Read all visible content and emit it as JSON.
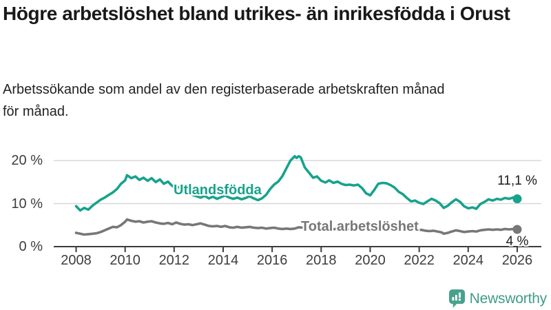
{
  "header": {
    "title": "Högre arbetslöshet bland utrikes- än inrikesfödda i Orust",
    "subtitle": "Arbetssökande som andel av den registerbaserade arbetskraften månad för månad."
  },
  "footer": {
    "brand": "Newsworthy",
    "logo_icon": "speech-bubble-bar-chart-icon"
  },
  "colors": {
    "foreign_born_line": "#17a28c",
    "total_line": "#777777",
    "gridline": "#d8d8d8",
    "axis": "#3a3a3a",
    "tick_text": "#3d3d3d",
    "logo": "#47a18e",
    "title_text": "#191919"
  },
  "chart_data": {
    "type": "line",
    "title": "Högre arbetslöshet bland utrikes- än inrikesfödda i Orust",
    "subtitle": "Arbetssökande som andel av den registerbaserade arbetskraften månad för månad.",
    "unit": "%",
    "xlabel": "",
    "ylabel": "",
    "ylim": [
      0,
      22
    ],
    "xlim": [
      2007.9,
      2027.0
    ],
    "grid": "horizontal",
    "legend": "inline-labels",
    "x_ticks": [
      2008,
      2010,
      2012,
      2014,
      2016,
      2018,
      2020,
      2022,
      2024,
      2026
    ],
    "y_ticks": [
      {
        "value": 20,
        "label": "20 %"
      },
      {
        "value": 10,
        "label": "10 %"
      },
      {
        "value": 0,
        "label": "0 %"
      }
    ],
    "series": [
      {
        "name": "Utlandsfödda",
        "color": "#17a28c",
        "end_label": "11,1 %",
        "end_value": 11.1,
        "points": [
          [
            2008.0,
            9.4
          ],
          [
            2008.17,
            8.4
          ],
          [
            2008.33,
            9.0
          ],
          [
            2008.5,
            8.6
          ],
          [
            2008.67,
            9.5
          ],
          [
            2008.83,
            10.2
          ],
          [
            2009.0,
            10.9
          ],
          [
            2009.17,
            11.4
          ],
          [
            2009.33,
            12.0
          ],
          [
            2009.5,
            12.6
          ],
          [
            2009.67,
            13.4
          ],
          [
            2009.83,
            14.6
          ],
          [
            2010.0,
            15.4
          ],
          [
            2010.08,
            16.6
          ],
          [
            2010.25,
            15.9
          ],
          [
            2010.42,
            16.3
          ],
          [
            2010.58,
            15.5
          ],
          [
            2010.75,
            16.0
          ],
          [
            2010.92,
            15.3
          ],
          [
            2011.08,
            15.9
          ],
          [
            2011.25,
            15.0
          ],
          [
            2011.42,
            15.6
          ],
          [
            2011.58,
            14.6
          ],
          [
            2011.75,
            15.1
          ],
          [
            2011.92,
            14.1
          ],
          [
            2012.08,
            13.6
          ],
          [
            2012.25,
            13.9
          ],
          [
            2012.42,
            12.9
          ],
          [
            2012.58,
            12.4
          ],
          [
            2012.75,
            12.0
          ],
          [
            2012.92,
            11.7
          ],
          [
            2013.08,
            11.4
          ],
          [
            2013.25,
            11.8
          ],
          [
            2013.42,
            11.2
          ],
          [
            2013.58,
            11.6
          ],
          [
            2013.75,
            11.1
          ],
          [
            2013.92,
            11.5
          ],
          [
            2014.08,
            11.9
          ],
          [
            2014.25,
            11.4
          ],
          [
            2014.42,
            11.1
          ],
          [
            2014.58,
            11.4
          ],
          [
            2014.75,
            11.0
          ],
          [
            2014.92,
            11.3
          ],
          [
            2015.08,
            11.7
          ],
          [
            2015.25,
            11.2
          ],
          [
            2015.42,
            10.8
          ],
          [
            2015.58,
            11.2
          ],
          [
            2015.75,
            12.0
          ],
          [
            2015.92,
            13.4
          ],
          [
            2016.08,
            14.4
          ],
          [
            2016.25,
            15.1
          ],
          [
            2016.42,
            16.4
          ],
          [
            2016.58,
            18.2
          ],
          [
            2016.75,
            20.0
          ],
          [
            2016.92,
            21.0
          ],
          [
            2017.0,
            20.6
          ],
          [
            2017.08,
            21.0
          ],
          [
            2017.17,
            20.7
          ],
          [
            2017.33,
            18.4
          ],
          [
            2017.5,
            17.2
          ],
          [
            2017.67,
            16.0
          ],
          [
            2017.83,
            16.3
          ],
          [
            2018.0,
            15.3
          ],
          [
            2018.17,
            14.9
          ],
          [
            2018.33,
            15.4
          ],
          [
            2018.5,
            14.8
          ],
          [
            2018.67,
            15.1
          ],
          [
            2018.83,
            14.6
          ],
          [
            2019.0,
            14.3
          ],
          [
            2019.17,
            14.4
          ],
          [
            2019.33,
            14.2
          ],
          [
            2019.5,
            14.4
          ],
          [
            2019.67,
            13.6
          ],
          [
            2019.83,
            12.4
          ],
          [
            2020.0,
            11.9
          ],
          [
            2020.17,
            13.2
          ],
          [
            2020.33,
            14.6
          ],
          [
            2020.5,
            14.8
          ],
          [
            2020.67,
            14.7
          ],
          [
            2020.83,
            14.3
          ],
          [
            2021.0,
            13.7
          ],
          [
            2021.17,
            12.7
          ],
          [
            2021.33,
            12.2
          ],
          [
            2021.5,
            11.3
          ],
          [
            2021.67,
            10.5
          ],
          [
            2021.83,
            10.7
          ],
          [
            2022.0,
            10.2
          ],
          [
            2022.17,
            9.9
          ],
          [
            2022.33,
            10.5
          ],
          [
            2022.5,
            11.1
          ],
          [
            2022.67,
            10.7
          ],
          [
            2022.83,
            10.1
          ],
          [
            2023.0,
            9.0
          ],
          [
            2023.17,
            9.5
          ],
          [
            2023.33,
            10.3
          ],
          [
            2023.5,
            11.0
          ],
          [
            2023.67,
            10.4
          ],
          [
            2023.83,
            9.4
          ],
          [
            2024.0,
            8.9
          ],
          [
            2024.17,
            9.1
          ],
          [
            2024.33,
            8.8
          ],
          [
            2024.5,
            9.9
          ],
          [
            2024.67,
            10.4
          ],
          [
            2024.83,
            11.0
          ],
          [
            2025.0,
            10.7
          ],
          [
            2025.17,
            11.1
          ],
          [
            2025.33,
            10.9
          ],
          [
            2025.5,
            11.3
          ],
          [
            2025.67,
            11.1
          ],
          [
            2025.83,
            11.4
          ],
          [
            2026.0,
            11.1
          ]
        ]
      },
      {
        "name": "Total arbetslöshet",
        "color": "#777777",
        "end_label": "4 %",
        "end_value": 4.0,
        "points": [
          [
            2008.0,
            3.2
          ],
          [
            2008.17,
            3.0
          ],
          [
            2008.33,
            2.8
          ],
          [
            2008.5,
            2.9
          ],
          [
            2008.67,
            3.0
          ],
          [
            2008.83,
            3.1
          ],
          [
            2009.0,
            3.4
          ],
          [
            2009.17,
            3.8
          ],
          [
            2009.33,
            4.2
          ],
          [
            2009.5,
            4.6
          ],
          [
            2009.67,
            4.5
          ],
          [
            2009.83,
            5.0
          ],
          [
            2010.0,
            5.8
          ],
          [
            2010.08,
            6.3
          ],
          [
            2010.25,
            6.0
          ],
          [
            2010.42,
            5.8
          ],
          [
            2010.58,
            5.9
          ],
          [
            2010.75,
            5.6
          ],
          [
            2010.92,
            5.8
          ],
          [
            2011.08,
            5.9
          ],
          [
            2011.25,
            5.6
          ],
          [
            2011.42,
            5.4
          ],
          [
            2011.58,
            5.3
          ],
          [
            2011.75,
            5.5
          ],
          [
            2011.92,
            5.2
          ],
          [
            2012.08,
            5.6
          ],
          [
            2012.25,
            5.3
          ],
          [
            2012.42,
            5.1
          ],
          [
            2012.58,
            5.2
          ],
          [
            2012.75,
            5.0
          ],
          [
            2012.92,
            5.2
          ],
          [
            2013.08,
            5.4
          ],
          [
            2013.25,
            5.1
          ],
          [
            2013.42,
            4.8
          ],
          [
            2013.58,
            4.7
          ],
          [
            2013.75,
            4.8
          ],
          [
            2013.92,
            4.6
          ],
          [
            2014.08,
            4.8
          ],
          [
            2014.25,
            4.5
          ],
          [
            2014.42,
            4.4
          ],
          [
            2014.58,
            4.6
          ],
          [
            2014.75,
            4.4
          ],
          [
            2014.92,
            4.5
          ],
          [
            2015.08,
            4.6
          ],
          [
            2015.25,
            4.4
          ],
          [
            2015.42,
            4.3
          ],
          [
            2015.58,
            4.4
          ],
          [
            2015.75,
            4.2
          ],
          [
            2015.92,
            4.3
          ],
          [
            2016.08,
            4.4
          ],
          [
            2016.25,
            4.2
          ],
          [
            2016.42,
            4.1
          ],
          [
            2016.58,
            4.2
          ],
          [
            2016.75,
            4.1
          ],
          [
            2016.92,
            4.2
          ],
          [
            2017.08,
            4.5
          ],
          [
            2017.25,
            4.4
          ],
          [
            2017.42,
            4.2
          ],
          [
            2017.58,
            4.1
          ],
          [
            2017.75,
            4.2
          ],
          [
            2017.92,
            4.1
          ],
          [
            2018.08,
            4.3
          ],
          [
            2018.25,
            4.1
          ],
          [
            2018.42,
            4.0
          ],
          [
            2018.58,
            4.1
          ],
          [
            2018.75,
            3.9
          ],
          [
            2018.92,
            4.0
          ],
          [
            2019.08,
            4.1
          ],
          [
            2019.25,
            4.0
          ],
          [
            2019.42,
            3.9
          ],
          [
            2019.58,
            4.0
          ],
          [
            2019.75,
            3.9
          ],
          [
            2019.92,
            4.0
          ],
          [
            2020.08,
            4.2
          ],
          [
            2020.25,
            4.6
          ],
          [
            2020.42,
            4.8
          ],
          [
            2020.58,
            4.7
          ],
          [
            2020.75,
            4.6
          ],
          [
            2020.92,
            4.5
          ],
          [
            2021.08,
            4.4
          ],
          [
            2021.25,
            4.3
          ],
          [
            2021.42,
            4.1
          ],
          [
            2021.58,
            4.0
          ],
          [
            2021.75,
            3.9
          ],
          [
            2021.92,
            3.8
          ],
          [
            2022.08,
            3.9
          ],
          [
            2022.25,
            3.7
          ],
          [
            2022.42,
            3.6
          ],
          [
            2022.58,
            3.7
          ],
          [
            2022.75,
            3.5
          ],
          [
            2022.92,
            3.3
          ],
          [
            2023.0,
            3.0
          ],
          [
            2023.17,
            3.2
          ],
          [
            2023.33,
            3.5
          ],
          [
            2023.5,
            3.8
          ],
          [
            2023.67,
            3.6
          ],
          [
            2023.83,
            3.4
          ],
          [
            2024.0,
            3.5
          ],
          [
            2024.17,
            3.6
          ],
          [
            2024.33,
            3.5
          ],
          [
            2024.5,
            3.8
          ],
          [
            2024.67,
            3.9
          ],
          [
            2024.83,
            4.0
          ],
          [
            2025.0,
            3.9
          ],
          [
            2025.17,
            4.0
          ],
          [
            2025.33,
            3.9
          ],
          [
            2025.5,
            4.1
          ],
          [
            2025.67,
            4.0
          ],
          [
            2025.83,
            4.1
          ],
          [
            2026.0,
            4.0
          ]
        ]
      }
    ]
  }
}
